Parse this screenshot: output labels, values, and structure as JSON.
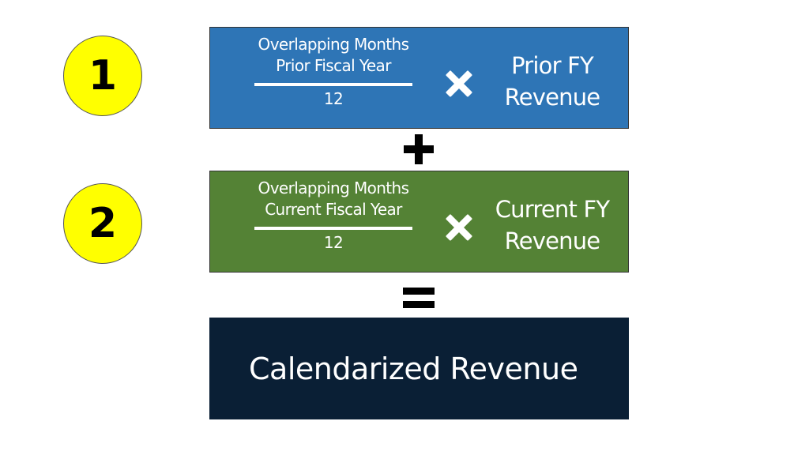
{
  "colors": {
    "step_badge": "#FFFF00",
    "prior_box": "#2E75B6",
    "current_box": "#548235",
    "result_box": "#0A1F35"
  },
  "steps": [
    {
      "number": "1",
      "numerator_line1": "Overlapping Months",
      "numerator_line2": "Prior Fiscal Year",
      "denominator": "12",
      "operator_icon": "multiply-icon",
      "rhs_line1": "Prior FY",
      "rhs_line2": "Revenue"
    },
    {
      "number": "2",
      "numerator_line1": "Overlapping Months",
      "numerator_line2": "Current Fiscal Year",
      "denominator": "12",
      "operator_icon": "multiply-icon",
      "rhs_line1": "Current FY",
      "rhs_line2": "Revenue"
    }
  ],
  "operators": {
    "between": "plus-icon",
    "before_result": "equals-icon"
  },
  "result": {
    "label": "Calendarized Revenue"
  }
}
